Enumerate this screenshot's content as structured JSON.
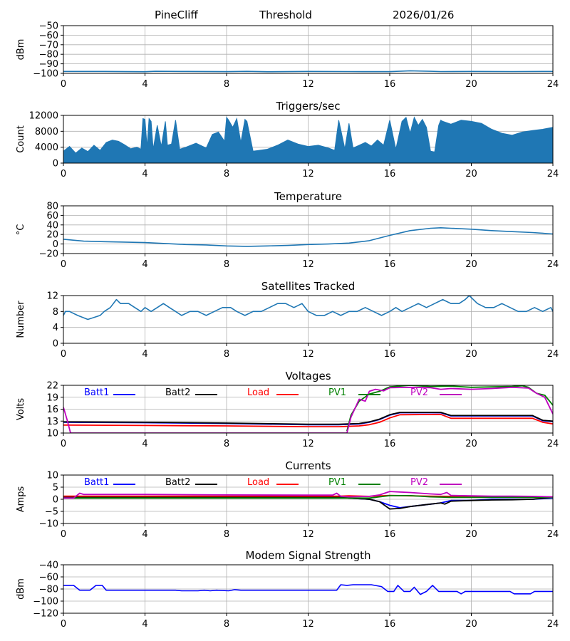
{
  "header": {
    "station": "PineCliff",
    "mode": "Threshold",
    "date": "2026/01/26"
  },
  "colors": {
    "series_default": "#1f77b4",
    "grid": "#b0b0b0",
    "Batt1": "#0000ff",
    "Batt2": "#000000",
    "Load": "#ff0000",
    "PV1": "#008000",
    "PV2": "#bf00bf",
    "modem": "#0000ff"
  },
  "chart_data": [
    {
      "id": "noise",
      "type": "line",
      "title": "",
      "xlabel": "",
      "ylabel": "dBm",
      "xlim": [
        0,
        24
      ],
      "ylim": [
        -100,
        -50
      ],
      "xticks": [
        "0",
        "4",
        "8",
        "12",
        "16",
        "20",
        "24"
      ],
      "yticks": [
        "−50",
        "−60",
        "−70",
        "−80",
        "−90",
        "−100"
      ],
      "grid": true,
      "series": [
        {
          "name": "dBm",
          "color": "#1f77b4",
          "x": [
            0,
            2,
            4,
            4.5,
            6,
            8,
            9,
            10,
            12,
            14,
            16,
            17,
            18,
            18.5,
            20,
            22,
            24
          ],
          "values": [
            -98,
            -98,
            -98.3,
            -97.8,
            -98,
            -98.2,
            -97.9,
            -98.3,
            -98,
            -98.1,
            -98.2,
            -97.3,
            -97.8,
            -98.1,
            -98,
            -98.1,
            -98
          ]
        }
      ]
    },
    {
      "id": "triggers",
      "type": "area",
      "title": "Triggers/sec",
      "xlabel": "",
      "ylabel": "Count",
      "xlim": [
        0,
        24
      ],
      "ylim": [
        0,
        12000
      ],
      "xticks": [
        "0",
        "4",
        "8",
        "12",
        "16",
        "20",
        "24"
      ],
      "yticks": [
        "12000",
        "8000",
        "4000",
        "0"
      ],
      "grid": true,
      "series": [
        {
          "name": "Count",
          "color": "#1f77b4",
          "x": [
            0,
            0.3,
            0.6,
            0.9,
            1.2,
            1.5,
            1.8,
            2.1,
            2.4,
            2.7,
            3.0,
            3.3,
            3.6,
            3.8,
            3.9,
            4.0,
            4.1,
            4.2,
            4.3,
            4.4,
            4.6,
            4.8,
            5.0,
            5.1,
            5.3,
            5.5,
            5.7,
            6.0,
            6.5,
            7.0,
            7.3,
            7.6,
            7.9,
            8.0,
            8.1,
            8.3,
            8.5,
            8.7,
            8.9,
            9.0,
            9.3,
            9.6,
            10.0,
            10.5,
            11.0,
            11.5,
            12.0,
            12.5,
            13.0,
            13.3,
            13.5,
            13.8,
            14.0,
            14.2,
            14.5,
            14.8,
            15.1,
            15.4,
            15.7,
            16.0,
            16.3,
            16.6,
            16.8,
            17.0,
            17.2,
            17.4,
            17.6,
            17.8,
            18.0,
            18.2,
            18.4,
            18.5,
            18.6,
            19.0,
            19.5,
            20.0,
            20.5,
            21.0,
            21.5,
            22.0,
            22.5,
            23.0,
            23.5,
            24.0
          ],
          "values": [
            3000,
            4200,
            2500,
            3800,
            2900,
            4500,
            3200,
            5200,
            5800,
            5500,
            4600,
            3600,
            4000,
            3500,
            11200,
            11000,
            4000,
            11200,
            10500,
            3500,
            9500,
            4200,
            10500,
            4500,
            4800,
            10800,
            3500,
            4000,
            5000,
            3800,
            7200,
            7800,
            5500,
            11500,
            10800,
            9000,
            11200,
            5200,
            11000,
            10500,
            3000,
            3200,
            3500,
            4500,
            5800,
            4800,
            4200,
            4500,
            3800,
            3200,
            10800,
            3600,
            10000,
            3800,
            4500,
            5200,
            4300,
            5800,
            4500,
            10800,
            3500,
            10500,
            11500,
            7500,
            11500,
            9500,
            11000,
            9000,
            3000,
            2800,
            9500,
            10800,
            10500,
            9800,
            10800,
            10500,
            10000,
            8500,
            7500,
            7000,
            7800,
            8200,
            8500,
            9000
          ]
        }
      ]
    },
    {
      "id": "temperature",
      "type": "line",
      "title": "Temperature",
      "xlabel": "",
      "ylabel": "°C",
      "xlim": [
        0,
        24
      ],
      "ylim": [
        -20,
        80
      ],
      "xticks": [
        "0",
        "4",
        "8",
        "12",
        "16",
        "20",
        "24"
      ],
      "yticks": [
        "80",
        "60",
        "40",
        "20",
        "0",
        "−20"
      ],
      "grid": true,
      "series": [
        {
          "name": "Temperature",
          "color": "#1f77b4",
          "x": [
            0,
            1,
            2,
            3,
            4,
            5,
            6,
            7,
            8,
            9,
            10,
            11,
            12,
            13,
            14,
            15,
            16,
            17,
            18,
            18.5,
            19,
            20,
            21,
            22,
            23,
            24
          ],
          "values": [
            10,
            6,
            5,
            4,
            3,
            1,
            -1,
            -2,
            -4,
            -5,
            -4,
            -3,
            -1,
            0,
            2,
            7,
            18,
            28,
            33,
            34,
            33,
            31,
            28,
            26,
            24,
            21
          ]
        }
      ]
    },
    {
      "id": "satellites",
      "type": "line",
      "title": "Satellites Tracked",
      "xlabel": "",
      "ylabel": "Number",
      "xlim": [
        0,
        24
      ],
      "ylim": [
        0,
        12
      ],
      "xticks": [
        "0",
        "4",
        "8",
        "12",
        "16",
        "20",
        "24"
      ],
      "yticks": [
        "12",
        "8",
        "4",
        "0"
      ],
      "grid": true,
      "series": [
        {
          "name": "Satellites",
          "color": "#1f77b4",
          "x": [
            0,
            0.1,
            0.3,
            0.7,
            1.2,
            1.8,
            2.0,
            2.3,
            2.6,
            2.8,
            3.2,
            3.5,
            3.8,
            4.0,
            4.3,
            4.6,
            4.9,
            5.2,
            5.5,
            5.8,
            6.2,
            6.6,
            7.0,
            7.4,
            7.8,
            8.2,
            8.5,
            8.9,
            9.3,
            9.7,
            10.1,
            10.5,
            10.9,
            11.3,
            11.7,
            12.0,
            12.4,
            12.8,
            13.2,
            13.6,
            14.0,
            14.4,
            14.8,
            15.2,
            15.6,
            16.0,
            16.3,
            16.6,
            17.0,
            17.4,
            17.8,
            18.2,
            18.6,
            19.0,
            19.4,
            19.7,
            19.9,
            20.3,
            20.7,
            21.1,
            21.5,
            21.9,
            22.3,
            22.7,
            23.1,
            23.5,
            23.9,
            24.0
          ],
          "values": [
            7,
            8,
            8,
            7,
            6,
            7,
            8,
            9,
            11,
            10,
            10,
            9,
            8,
            9,
            8,
            9,
            10,
            9,
            8,
            7,
            8,
            8,
            7,
            8,
            9,
            9,
            8,
            7,
            8,
            8,
            9,
            10,
            10,
            9,
            10,
            8,
            7,
            7,
            8,
            7,
            8,
            8,
            9,
            8,
            7,
            8,
            9,
            8,
            9,
            10,
            9,
            10,
            11,
            10,
            10,
            11,
            12,
            10,
            9,
            9,
            10,
            9,
            8,
            8,
            9,
            8,
            9,
            8
          ]
        }
      ]
    },
    {
      "id": "voltages",
      "type": "line",
      "title": "Voltages",
      "xlabel": "",
      "ylabel": "Volts",
      "xlim": [
        0,
        24
      ],
      "ylim": [
        10,
        22
      ],
      "xticks": [
        "0",
        "4",
        "8",
        "12",
        "16",
        "20",
        "24"
      ],
      "yticks": [
        "22",
        "19",
        "16",
        "13",
        "10"
      ],
      "grid": true,
      "legend": [
        "Batt1",
        "Batt2",
        "Load",
        "PV1",
        "PV2"
      ],
      "series": [
        {
          "name": "Batt1",
          "color": "#0000ff",
          "x": [
            0,
            4,
            8,
            12,
            13.5,
            14.5,
            15,
            15.5,
            16,
            16.5,
            18.5,
            19,
            23,
            23.5,
            24
          ],
          "values": [
            12.7,
            12.6,
            12.4,
            12.1,
            12.1,
            12.3,
            12.7,
            13.4,
            14.5,
            15.1,
            15.1,
            14.3,
            14.3,
            13.1,
            12.9
          ]
        },
        {
          "name": "Batt2",
          "color": "#000000",
          "x": [
            0,
            4,
            8,
            12,
            13.5,
            14.5,
            15,
            15.5,
            16,
            16.5,
            18.5,
            19,
            23,
            23.5,
            24
          ],
          "values": [
            12.8,
            12.7,
            12.5,
            12.2,
            12.2,
            12.4,
            12.8,
            13.5,
            14.6,
            15.2,
            15.2,
            14.4,
            14.4,
            13.2,
            13.0
          ]
        },
        {
          "name": "Load",
          "color": "#ff0000",
          "x": [
            0,
            4,
            8,
            12,
            13.5,
            14.5,
            15,
            15.5,
            16,
            16.5,
            18.5,
            19,
            23,
            23.5,
            24
          ],
          "values": [
            12.0,
            11.9,
            11.8,
            11.6,
            11.6,
            11.8,
            12.1,
            12.7,
            13.8,
            14.6,
            14.7,
            13.7,
            13.7,
            12.7,
            12.3
          ]
        },
        {
          "name": "PV1",
          "color": "#008000",
          "x": [
            13.9,
            14.1,
            14.5,
            15.0,
            15.5,
            16.0,
            17.0,
            18.0,
            19.0,
            20.0,
            21.0,
            22.0,
            22.5,
            22.8,
            23.2,
            23.6,
            24.0
          ],
          "values": [
            10.5,
            14.5,
            18.0,
            19.8,
            20.5,
            21.6,
            22.0,
            21.7,
            21.8,
            21.5,
            21.6,
            21.7,
            21.9,
            21.5,
            20.0,
            19.5,
            17.0
          ]
        },
        {
          "name": "PV2",
          "color": "#bf00bf",
          "x": [
            0,
            0.2,
            0.35,
            13.9,
            14.1,
            14.5,
            14.8,
            15.0,
            15.3,
            15.7,
            16.0,
            17.0,
            18.0,
            18.5,
            19.0,
            20.0,
            21.0,
            22.0,
            22.8,
            23.2,
            23.6,
            24.0
          ],
          "values": [
            16.5,
            13.0,
            10.0,
            10.0,
            14.0,
            18.5,
            18.0,
            20.5,
            21.0,
            20.6,
            21.4,
            21.5,
            21.4,
            21.0,
            21.2,
            21.0,
            21.2,
            21.5,
            21.3,
            20.0,
            19.0,
            14.8
          ]
        }
      ]
    },
    {
      "id": "currents",
      "type": "line",
      "title": "Currents",
      "xlabel": "",
      "ylabel": "Amps",
      "xlim": [
        0,
        24
      ],
      "ylim": [
        -10,
        10
      ],
      "xticks": [
        "0",
        "4",
        "8",
        "12",
        "16",
        "20",
        "24"
      ],
      "yticks": [
        "10",
        "5",
        "0",
        "−5",
        "−10"
      ],
      "grid": true,
      "legend": [
        "Batt1",
        "Batt2",
        "Load",
        "PV1",
        "PV2"
      ],
      "series": [
        {
          "name": "Batt1",
          "color": "#0000ff",
          "x": [
            0,
            13.5,
            14,
            15,
            15.5,
            16,
            16.5,
            17,
            18,
            18.5,
            19,
            20,
            21,
            22,
            23,
            24
          ],
          "values": [
            1.0,
            1.0,
            0.5,
            0,
            -1.0,
            -2.5,
            -3.5,
            -3.0,
            -2.0,
            -1.5,
            -0.5,
            -0.5,
            0,
            0,
            0,
            0.5
          ]
        },
        {
          "name": "Batt2",
          "color": "#000000",
          "x": [
            0,
            13.5,
            14,
            15,
            15.5,
            16,
            16.5,
            17,
            18,
            18.5,
            18.7,
            19,
            20,
            21,
            22,
            23,
            24
          ],
          "values": [
            1.0,
            1.0,
            0.5,
            0,
            -1.0,
            -4.0,
            -3.8,
            -3.0,
            -2.0,
            -1.5,
            -2.0,
            -0.8,
            -0.5,
            -0.3,
            -0.2,
            0,
            0.8
          ]
        },
        {
          "name": "Load",
          "color": "#ff0000",
          "x": [
            0,
            13.5,
            14,
            15,
            16,
            17,
            18,
            19,
            20,
            21,
            22,
            23,
            24
          ],
          "values": [
            1.3,
            1.3,
            1.4,
            1.2,
            1.6,
            1.4,
            1.3,
            1.2,
            1.1,
            1.1,
            1.0,
            1.0,
            1.0
          ]
        },
        {
          "name": "PV1",
          "color": "#008000",
          "x": [
            0,
            13.5,
            14,
            15,
            16,
            17,
            18,
            19,
            20,
            21,
            22,
            23,
            24
          ],
          "values": [
            0.5,
            0.5,
            0.5,
            0.5,
            1.5,
            1.5,
            1.0,
            0.8,
            0.8,
            0.8,
            0.8,
            0.8,
            0.8
          ]
        },
        {
          "name": "PV2",
          "color": "#bf00bf",
          "x": [
            0,
            0.5,
            0.8,
            1.0,
            4,
            8,
            12,
            13.2,
            13.4,
            13.6,
            14,
            15,
            15.5,
            16,
            16.5,
            17,
            18,
            18.5,
            18.8,
            19,
            20,
            21,
            22,
            23,
            24
          ],
          "values": [
            0.5,
            0.5,
            2.5,
            2.0,
            2.0,
            1.8,
            1.7,
            1.7,
            2.5,
            1.2,
            1.0,
            1.2,
            1.8,
            3.2,
            3.0,
            2.8,
            2.2,
            2.0,
            2.8,
            1.6,
            1.4,
            1.3,
            1.3,
            1.2,
            1.0
          ]
        }
      ]
    },
    {
      "id": "modem",
      "type": "line",
      "title": "Modem Signal Strength",
      "xlabel": "",
      "ylabel": "dBm",
      "xlim": [
        0,
        24
      ],
      "ylim": [
        -120,
        -40
      ],
      "xticks": [
        "0",
        "4",
        "8",
        "12",
        "16",
        "20",
        "24"
      ],
      "yticks": [
        "−40",
        "−60",
        "−80",
        "−100",
        "−120"
      ],
      "grid": true,
      "series": [
        {
          "name": "Modem dBm",
          "color": "#0000ff",
          "x": [
            0,
            0.5,
            0.8,
            1.3,
            1.6,
            1.9,
            2.1,
            2.4,
            4,
            5.5,
            5.8,
            6.6,
            6.9,
            7.2,
            7.5,
            8.1,
            8.4,
            8.7,
            13.4,
            13.6,
            13.9,
            14.2,
            15.1,
            15.6,
            15.9,
            16.2,
            16.4,
            16.7,
            17.0,
            17.2,
            17.5,
            17.8,
            18.1,
            18.4,
            19.3,
            19.5,
            19.7,
            21.9,
            22.1,
            22.9,
            23.1,
            24.0
          ],
          "values": [
            -74,
            -74,
            -82,
            -82,
            -74,
            -74,
            -82,
            -82,
            -82,
            -82,
            -83,
            -83,
            -82,
            -83,
            -82,
            -83,
            -81,
            -82,
            -82,
            -73,
            -74,
            -73,
            -73,
            -76,
            -84,
            -84,
            -74,
            -84,
            -84,
            -77,
            -89,
            -84,
            -74,
            -84,
            -84,
            -88,
            -84,
            -84,
            -88,
            -88,
            -84,
            -84
          ]
        }
      ]
    }
  ]
}
